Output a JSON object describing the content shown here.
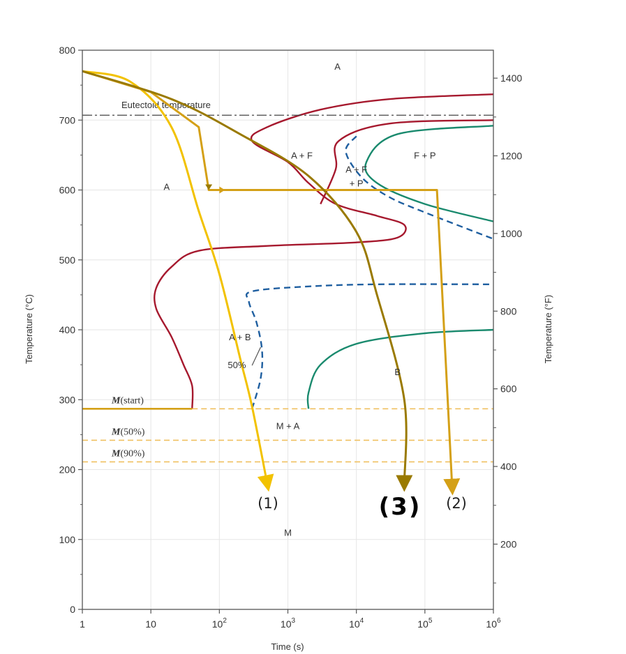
{
  "chart_data": {
    "type": "line",
    "left_axis": {
      "label": "Temperature (°C)",
      "range": [
        0,
        800
      ],
      "ticks": [
        "0",
        "100",
        "200",
        "300",
        "400",
        "500",
        "600",
        "700",
        "800"
      ]
    },
    "right_axis": {
      "label": "Temperature (°F)",
      "ticks": [
        "200",
        "400",
        "600",
        "800",
        "1000",
        "1200",
        "1400"
      ],
      "tick_values_F": [
        200,
        400,
        600,
        800,
        1000,
        1200,
        1400
      ]
    },
    "x_axis": {
      "label": "Time (s)",
      "scale": "log",
      "range": [
        1,
        1000000
      ],
      "ticks": [
        {
          "value": 1,
          "base": "1",
          "exp": ""
        },
        {
          "value": 10,
          "base": "10",
          "exp": ""
        },
        {
          "value": 100,
          "base": "10",
          "exp": "2"
        },
        {
          "value": 1000,
          "base": "10",
          "exp": "3"
        },
        {
          "value": 10000,
          "base": "10",
          "exp": "4"
        },
        {
          "value": 100000,
          "base": "10",
          "exp": "5"
        },
        {
          "value": 1000000,
          "base": "10",
          "exp": "6"
        }
      ]
    },
    "grid": true,
    "eutectoid": {
      "label": "Eutectoid temperature",
      "temperature_c": 707
    },
    "martensite_lines": [
      {
        "label_m": "M",
        "label_rest": "(start)",
        "temperature_c": 287
      },
      {
        "label_m": "M",
        "label_rest": "(50%)",
        "temperature_c": 242
      },
      {
        "label_m": "M",
        "label_rest": "(90%)",
        "temperature_c": 211
      }
    ],
    "region_labels": [
      {
        "text": "A",
        "t": 5300,
        "T": 772
      },
      {
        "text": "A + F",
        "t": 1600,
        "T": 645
      },
      {
        "text": "A + F",
        "t": 10000,
        "T": 625
      },
      {
        "text": "+ P",
        "t": 10000,
        "T": 605
      },
      {
        "text": "F + P",
        "t": 100000,
        "T": 645
      },
      {
        "text": "A",
        "t": 17,
        "T": 600
      },
      {
        "text": "A + B",
        "t": 200,
        "T": 385
      },
      {
        "text": "50%",
        "t": 180,
        "T": 345
      },
      {
        "text": "B",
        "t": 40000,
        "T": 335
      },
      {
        "text": "M + A",
        "t": 1000,
        "T": 258
      },
      {
        "text": "M",
        "t": 1000,
        "T": 105
      }
    ],
    "series": [
      {
        "color": "#a6192e",
        "style": "solid",
        "points": [
          [
            40,
            287
          ],
          [
            40,
            320
          ],
          [
            30,
            350
          ],
          [
            20,
            390
          ],
          [
            12,
            430
          ],
          [
            12,
            460
          ],
          [
            20,
            490
          ],
          [
            50,
            513
          ],
          [
            500,
            520
          ],
          [
            10000,
            525
          ],
          [
            40000,
            532
          ],
          [
            50000,
            550
          ],
          [
            20000,
            563
          ],
          [
            5000,
            580
          ],
          [
            2000,
            610
          ],
          [
            1000,
            640
          ],
          [
            300,
            670
          ],
          [
            500,
            690
          ],
          [
            3000,
            715
          ],
          [
            30000,
            730
          ],
          [
            1000000,
            737
          ]
        ]
      },
      {
        "color": "#a6192e",
        "style": "solid",
        "points": [
          [
            3000,
            580
          ],
          [
            5000,
            630
          ],
          [
            5500,
            670
          ],
          [
            30000,
            695
          ],
          [
            1000000,
            700
          ]
        ]
      },
      {
        "color": "#1f5fa0",
        "style": "dashed",
        "points": [
          [
            300,
            287
          ],
          [
            400,
            330
          ],
          [
            420,
            370
          ],
          [
            350,
            410
          ],
          [
            270,
            440
          ],
          [
            300,
            455
          ],
          [
            2000,
            462
          ],
          [
            20000,
            465
          ],
          [
            1000000,
            465
          ]
        ]
      },
      {
        "color": "#1f5fa0",
        "style": "dashed",
        "points": [
          [
            10000,
            677
          ],
          [
            7000,
            655
          ],
          [
            12000,
            618
          ],
          [
            30000,
            590
          ],
          [
            100000,
            568
          ],
          [
            1000000,
            530
          ]
        ]
      },
      {
        "color": "#1a8a6e",
        "style": "solid",
        "points": [
          [
            2000,
            287
          ],
          [
            2000,
            310
          ],
          [
            3000,
            350
          ],
          [
            10000,
            380
          ],
          [
            100000,
            395
          ],
          [
            1000000,
            400
          ]
        ]
      },
      {
        "color": "#1a8a6e",
        "style": "solid",
        "points": [
          [
            1000000,
            692
          ],
          [
            40000,
            680
          ],
          [
            14000,
            640
          ],
          [
            20000,
            610
          ],
          [
            100000,
            580
          ],
          [
            1000000,
            555
          ]
        ]
      }
    ],
    "cooling_paths": [
      {
        "label": "(1)",
        "color": "#f2c200",
        "points": [
          [
            1,
            770
          ],
          [
            5,
            755
          ],
          [
            20,
            690
          ],
          [
            50,
            570
          ],
          [
            100,
            480
          ],
          [
            200,
            360
          ],
          [
            300,
            290
          ],
          [
            500,
            180
          ]
        ]
      },
      {
        "label": "(2)",
        "color": "#d4a017",
        "points": [
          [
            1,
            770
          ],
          [
            10,
            740
          ],
          [
            50,
            690
          ],
          [
            70,
            600
          ],
          [
            100,
            600
          ],
          [
            150000,
            600
          ],
          [
            250000,
            175
          ]
        ]
      },
      {
        "label": "(3)",
        "color": "#9a7a00",
        "points": [
          [
            1,
            770
          ],
          [
            20,
            730
          ],
          [
            200,
            680
          ],
          [
            2000,
            620
          ],
          [
            10000,
            540
          ],
          [
            20000,
            450
          ],
          [
            50000,
            300
          ],
          [
            50000,
            180
          ]
        ]
      }
    ],
    "path_labels": {
      "p1": "(1)",
      "p2": "(2)",
      "p3": "(3)"
    }
  }
}
